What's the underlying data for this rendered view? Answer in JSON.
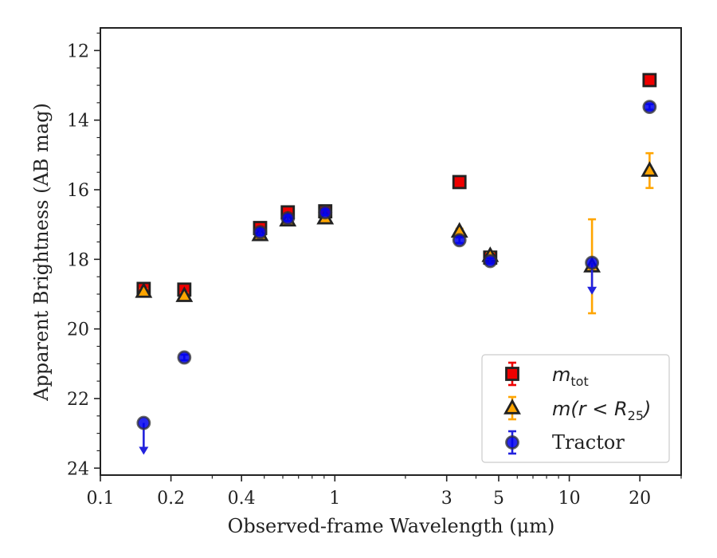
{
  "chart_data": {
    "type": "scatter",
    "xlabel": "Observed-frame Wavelength (μm)",
    "ylabel": "Apparent Brightness (AB mag)",
    "xscale": "log",
    "xlim": [
      0.1,
      30
    ],
    "ylim": [
      24.2,
      11.35
    ],
    "y_inverted": true,
    "x_ticks": [
      {
        "value": 0.1,
        "label": "0.1"
      },
      {
        "value": 0.2,
        "label": "0.2"
      },
      {
        "value": 0.4,
        "label": "0.4"
      },
      {
        "value": 1,
        "label": "1"
      },
      {
        "value": 3,
        "label": "3"
      },
      {
        "value": 5,
        "label": "5"
      },
      {
        "value": 10,
        "label": "10"
      },
      {
        "value": 20,
        "label": "20"
      }
    ],
    "y_ticks": [
      12,
      14,
      16,
      18,
      20,
      22,
      24
    ],
    "legend_position": "lower-right",
    "series": [
      {
        "name": "m_tot",
        "label_italic": "m",
        "label_sub": "tot",
        "marker": "square",
        "color": "#ee0000",
        "err_color": "#ee0000",
        "points": [
          {
            "x": 0.153,
            "y": 18.85,
            "err": 0.12
          },
          {
            "x": 0.228,
            "y": 18.87,
            "err": 0.12
          },
          {
            "x": 0.48,
            "y": 17.1,
            "err": 0.1
          },
          {
            "x": 0.63,
            "y": 16.65,
            "err": 0.1
          },
          {
            "x": 0.91,
            "y": 16.62,
            "err": 0.1
          },
          {
            "x": 3.4,
            "y": 15.78,
            "err": 0.1
          },
          {
            "x": 4.6,
            "y": 17.95,
            "err": 0.1
          },
          {
            "x": 22,
            "y": 12.85,
            "err": 0.1
          }
        ]
      },
      {
        "name": "m(r < R25)",
        "label_italic": "m(r < R",
        "label_sub": "25",
        "label_tail": ")",
        "marker": "triangle",
        "color": "#ffa500",
        "err_color": "#ffa500",
        "points": [
          {
            "x": 0.153,
            "y": 18.93,
            "err": 0.08
          },
          {
            "x": 0.228,
            "y": 19.05,
            "err": 0.08
          },
          {
            "x": 0.48,
            "y": 17.3,
            "err": 0.08
          },
          {
            "x": 0.63,
            "y": 16.88,
            "err": 0.08
          },
          {
            "x": 0.91,
            "y": 16.82,
            "err": 0.08
          },
          {
            "x": 3.4,
            "y": 17.2,
            "err": 0.08
          },
          {
            "x": 4.6,
            "y": 17.9,
            "err": 0.08
          },
          {
            "x": 12.5,
            "y": 18.2,
            "err": 1.35
          },
          {
            "x": 22,
            "y": 15.45,
            "err": 0.5
          }
        ]
      },
      {
        "name": "Tractor",
        "marker": "circle",
        "color": "#0000ee",
        "err_color": "#2222dd",
        "points": [
          {
            "x": 0.153,
            "y": 22.7,
            "upper_limit": true
          },
          {
            "x": 0.228,
            "y": 20.82,
            "err": 0.08
          },
          {
            "x": 0.48,
            "y": 17.22,
            "err": 0.08
          },
          {
            "x": 0.63,
            "y": 16.82,
            "err": 0.08
          },
          {
            "x": 0.91,
            "y": 16.65,
            "err": 0.08
          },
          {
            "x": 3.4,
            "y": 17.45,
            "err": 0.08
          },
          {
            "x": 4.6,
            "y": 18.05,
            "err": 0.08
          },
          {
            "x": 12.5,
            "y": 18.1,
            "upper_limit": true
          },
          {
            "x": 22,
            "y": 13.62,
            "err": 0.08
          }
        ]
      }
    ]
  }
}
